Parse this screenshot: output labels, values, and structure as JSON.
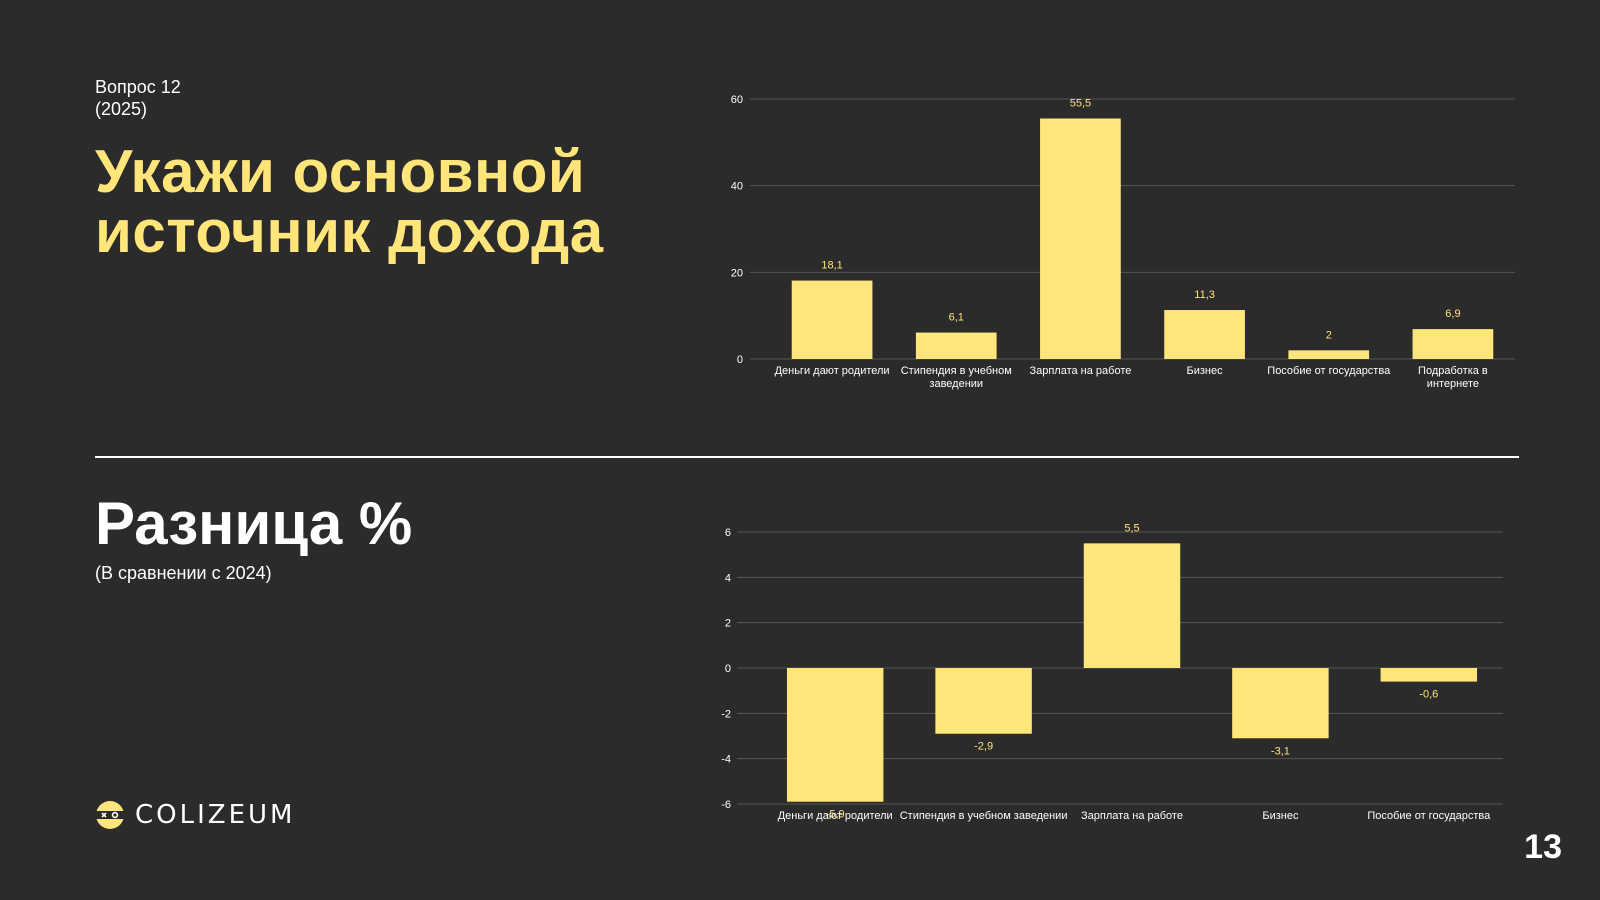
{
  "question": {
    "line1": "Вопрос 12",
    "line2": "(2025)"
  },
  "title": {
    "line1": "Укажи основной",
    "line2": "источник дохода"
  },
  "diff": {
    "title": "Разница %",
    "subtitle": "(В сравнении с 2024)"
  },
  "logo": {
    "text": "COLIZEUM"
  },
  "page_number": "13",
  "colors": {
    "background": "#2b2b2b",
    "accent": "#ffe57a",
    "grid": "#555555"
  },
  "chart_data": [
    {
      "type": "bar",
      "categories": [
        "Деньги дают родители",
        "Стипендия в учебном заведении",
        "Зарплата на работе",
        "Бизнес",
        "Пособие от государства",
        "Подработка в интернете"
      ],
      "category_lines": [
        [
          "Деньги дают родители"
        ],
        [
          "Стипендия в учебном",
          "заведении"
        ],
        [
          "Зарплата на работе"
        ],
        [
          "Бизнес"
        ],
        [
          "Пособие от государства"
        ],
        [
          "Подработка в",
          "интернете"
        ]
      ],
      "values": [
        18.1,
        6.1,
        55.5,
        11.3,
        2,
        6.9
      ],
      "value_labels": [
        "18,1",
        "6,1",
        "55,5",
        "11,3",
        "2",
        "6,9"
      ],
      "yticks": [
        0,
        20,
        40,
        60
      ],
      "ylim": [
        0,
        60
      ],
      "grid": true
    },
    {
      "type": "bar",
      "categories": [
        "Деньги дают родители",
        "Стипендия в учебном заведении",
        "Зарплата на работе",
        "Бизнес",
        "Пособие от государства"
      ],
      "category_lines": [
        [
          "Деньги дают родители"
        ],
        [
          "Стипендия в учебном заведении"
        ],
        [
          "Зарплата на работе"
        ],
        [
          "Бизнес"
        ],
        [
          "Пособие от государства"
        ]
      ],
      "values": [
        -5.9,
        -2.9,
        5.5,
        -3.1,
        -0.6
      ],
      "value_labels": [
        "-5,9",
        "-2,9",
        "5,5",
        "-3,1",
        "-0,6"
      ],
      "yticks": [
        -6,
        -4,
        -2,
        0,
        2,
        4,
        6
      ],
      "ylim": [
        -6,
        6
      ],
      "grid": true
    }
  ]
}
